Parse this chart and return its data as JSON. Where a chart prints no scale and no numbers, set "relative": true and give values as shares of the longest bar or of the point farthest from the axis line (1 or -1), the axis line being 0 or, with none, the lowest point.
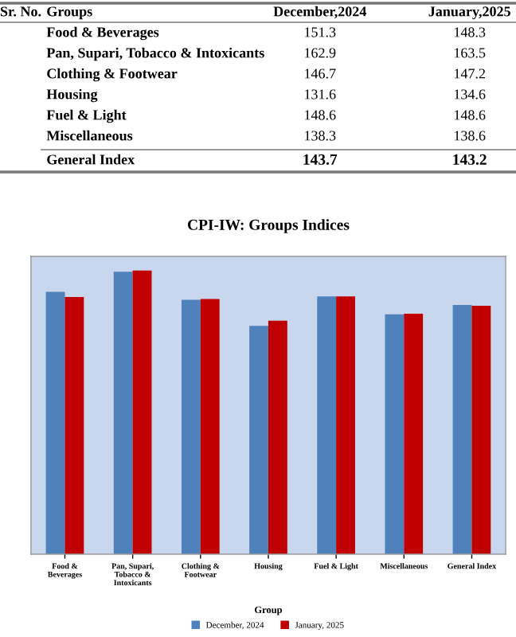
{
  "chart_data": [
    {
      "type": "other",
      "annotations": [
        "Sr. No.",
        "Groups",
        "December,2024",
        "January,2025",
        "Food & Beverages",
        "151.3",
        "148.3",
        "Pan, Supari, Tobacco & Intoxicants",
        "162.9",
        "163.5",
        "Clothing & Footwear",
        "146.7",
        "147.2",
        "Housing",
        "131.6",
        "134.6",
        "Fuel & Light",
        "148.6",
        "148.6",
        "Miscellaneous",
        "138.3",
        "138.6",
        "General Index",
        "143.7",
        "143.2"
      ]
    },
    {
      "type": "bar",
      "title": "CPI-IW: Groups Indices",
      "xlabel": "Group",
      "relative": true,
      "categories": [
        "Food & Beverages",
        "Pan, Supari, Tobacco & Intoxicants",
        "Clothing & Footwear",
        "Housing",
        "Fuel & Light",
        "Miscellaneous",
        "General Index"
      ],
      "series": [
        {
          "name": "December, 2024",
          "color": "#4f81bd",
          "values": [
            0.925,
            0.996,
            0.897,
            0.805,
            0.909,
            0.846,
            0.879
          ]
        },
        {
          "name": "January, 2025",
          "color": "#c00000",
          "values": [
            0.907,
            1,
            0.9,
            0.823,
            0.909,
            0.848,
            0.876
          ]
        }
      ],
      "legend": "bottom"
    }
  ]
}
